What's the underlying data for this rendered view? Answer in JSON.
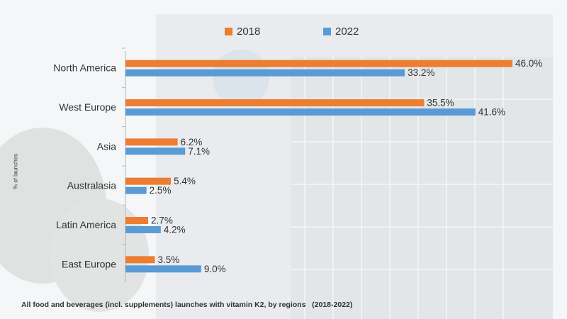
{
  "chart_data": {
    "type": "bar",
    "orientation": "horizontal",
    "categories": [
      "North America",
      "West Europe",
      "Asia",
      "Australasia",
      "Latin America",
      "East Europe"
    ],
    "series": [
      {
        "name": "2018",
        "color": "#ed7d31",
        "values": [
          46.0,
          35.5,
          6.2,
          5.4,
          2.7,
          3.5
        ],
        "labels": [
          "46.0%",
          "35.5%",
          "6.2%",
          "5.4%",
          "2.7%",
          "3.5%"
        ]
      },
      {
        "name": "2022",
        "color": "#5b9bd5",
        "values": [
          33.2,
          41.6,
          7.1,
          2.5,
          4.2,
          9.0
        ],
        "labels": [
          "33.2%",
          "41.6%",
          "7.1%",
          "2.5%",
          "4.2%",
          "9.0%"
        ]
      }
    ],
    "ylabel": "% of launches",
    "xlim": [
      0,
      46.0
    ],
    "grid": false,
    "legend_position": "top",
    "caption": "All food and beverages (incl. supplements) launches with vitamin K2, by regions   (2018-2022)"
  }
}
